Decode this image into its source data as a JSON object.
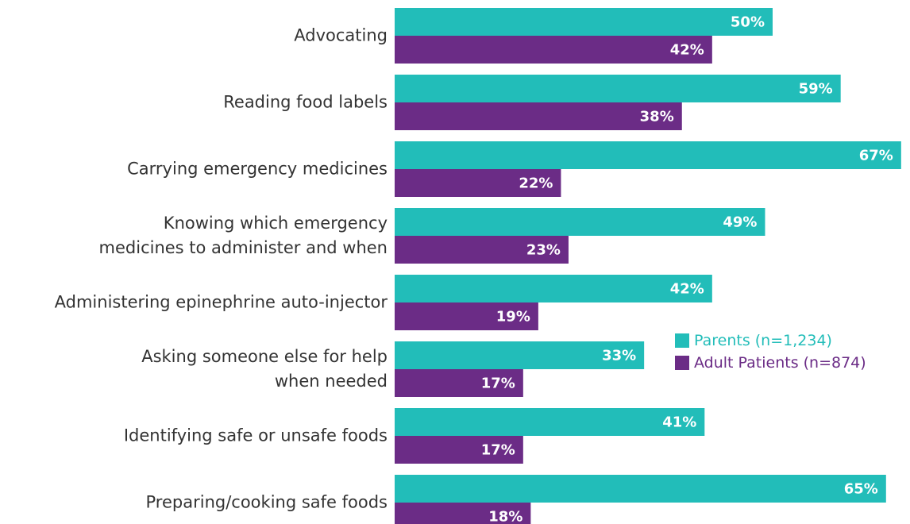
{
  "chart_data": {
    "type": "bar",
    "orientation": "horizontal",
    "categories": [
      "Advocating",
      "Reading food labels",
      "Carrying emergency medicines",
      "Knowing which emergency\nmedicines to administer and when",
      "Administering epinephrine auto-injector",
      "Asking someone else for help\nwhen needed",
      "Identifying safe or unsafe foods",
      "Preparing/cooking safe foods"
    ],
    "series": [
      {
        "name": "Parents (n=1,234)",
        "color": "#22bdb9",
        "values": [
          50,
          59,
          67,
          49,
          42,
          33,
          41,
          65
        ],
        "value_labels": [
          "50%",
          "59%",
          "67%",
          "49%",
          "42%",
          "33%",
          "41%",
          "65%"
        ]
      },
      {
        "name": "Adult Patients (n=874)",
        "color": "#6b2c86",
        "values": [
          42,
          38,
          22,
          23,
          19,
          17,
          17,
          18
        ],
        "value_labels": [
          "42%",
          "38%",
          "22%",
          "23%",
          "19%",
          "17%",
          "17%",
          "18%"
        ]
      }
    ],
    "legend": "right"
  }
}
